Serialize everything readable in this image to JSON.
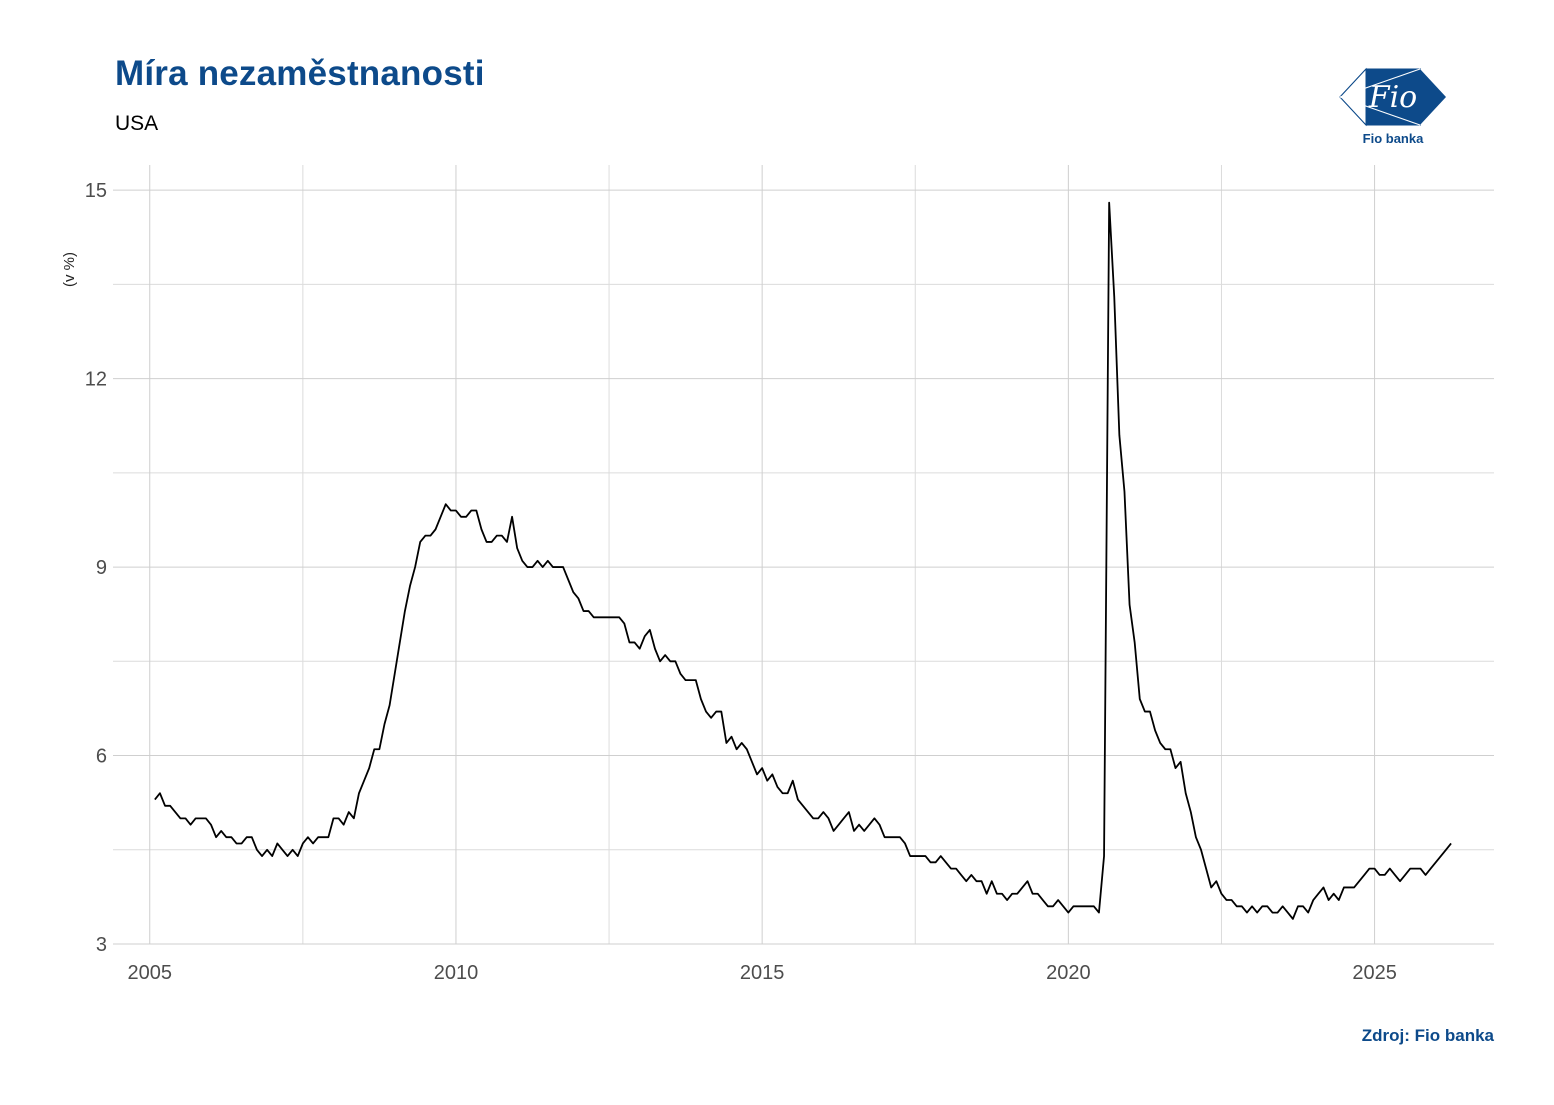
{
  "title": "Míra nezaměstnanosti",
  "subtitle": "USA",
  "source": "Zdroj: Fio banka",
  "logo": {
    "mark_text": "Fio",
    "caption": "Fio banka",
    "color": "#0d4a8a"
  },
  "chart_data": {
    "type": "line",
    "title": "Míra nezaměstnanosti",
    "subtitle": "USA",
    "ylabel": "(v %)",
    "xlabel": "",
    "ylim": [
      3,
      15.4
    ],
    "xlim": [
      2004.4,
      2026.95
    ],
    "y_ticks": [
      3,
      6,
      9,
      12,
      15
    ],
    "y_tick_labels": [
      "3",
      "6",
      "9",
      "12",
      "15"
    ],
    "x_ticks": [
      2005,
      2010,
      2015,
      2020,
      2025
    ],
    "x_tick_labels": [
      "2005",
      "2010",
      "2015",
      "2020",
      "2025"
    ],
    "grid": true,
    "line_color": "#000000",
    "series": [
      {
        "x_start": 2005.0833,
        "x_step": 0.08333,
        "values": [
          5.3,
          5.4,
          5.2,
          5.2,
          5.1,
          5.0,
          5.0,
          4.9,
          5.0,
          5.0,
          5.0,
          4.9,
          4.7,
          4.8,
          4.7,
          4.7,
          4.6,
          4.6,
          4.7,
          4.7,
          4.5,
          4.4,
          4.5,
          4.4,
          4.6,
          4.5,
          4.4,
          4.5,
          4.4,
          4.6,
          4.7,
          4.6,
          4.7,
          4.7,
          4.7,
          5.0,
          5.0,
          4.9,
          5.1,
          5.0,
          5.4,
          5.6,
          5.8,
          6.1,
          6.1,
          6.5,
          6.8,
          7.3,
          7.8,
          8.3,
          8.7,
          9.0,
          9.4,
          9.5,
          9.5,
          9.6,
          9.8,
          10.0,
          9.9,
          9.9,
          9.8,
          9.8,
          9.9,
          9.9,
          9.6,
          9.4,
          9.4,
          9.5,
          9.5,
          9.4,
          9.8,
          9.3,
          9.1,
          9.0,
          9.0,
          9.1,
          9.0,
          9.1,
          9.0,
          9.0,
          9.0,
          8.8,
          8.6,
          8.5,
          8.3,
          8.3,
          8.2,
          8.2,
          8.2,
          8.2,
          8.2,
          8.2,
          8.1,
          7.8,
          7.8,
          7.7,
          7.9,
          8.0,
          7.7,
          7.5,
          7.6,
          7.5,
          7.5,
          7.3,
          7.2,
          7.2,
          7.2,
          6.9,
          6.7,
          6.6,
          6.7,
          6.7,
          6.2,
          6.3,
          6.1,
          6.2,
          6.1,
          5.9,
          5.7,
          5.8,
          5.6,
          5.7,
          5.5,
          5.4,
          5.4,
          5.6,
          5.3,
          5.2,
          5.1,
          5.0,
          5.0,
          5.1,
          5.0,
          4.8,
          4.9,
          5.0,
          5.1,
          4.8,
          4.9,
          4.8,
          4.9,
          5.0,
          4.9,
          4.7,
          4.7,
          4.7,
          4.7,
          4.6,
          4.4,
          4.4,
          4.4,
          4.4,
          4.3,
          4.3,
          4.4,
          4.3,
          4.2,
          4.2,
          4.1,
          4.0,
          4.1,
          4.0,
          4.0,
          3.8,
          4.0,
          3.8,
          3.8,
          3.7,
          3.8,
          3.8,
          3.9,
          4.0,
          3.8,
          3.8,
          3.7,
          3.6,
          3.6,
          3.7,
          3.6,
          3.5,
          3.6,
          3.6,
          3.6,
          3.6,
          3.6,
          3.5,
          4.4,
          14.8,
          13.3,
          11.1,
          10.2,
          8.4,
          7.8,
          6.9,
          6.7,
          6.7,
          6.4,
          6.2,
          6.1,
          6.1,
          5.8,
          5.9,
          5.4,
          5.1,
          4.7,
          4.5,
          4.2,
          3.9,
          4.0,
          3.8,
          3.7,
          3.7,
          3.6,
          3.6,
          3.5,
          3.6,
          3.5,
          3.6,
          3.6,
          3.5,
          3.5,
          3.6,
          3.5,
          3.4,
          3.6,
          3.6,
          3.5,
          3.7,
          3.8,
          3.9,
          3.7,
          3.8,
          3.7,
          3.9,
          3.9,
          3.9,
          4.0,
          4.1,
          4.2,
          4.2,
          4.1,
          4.1,
          4.2,
          4.1,
          4.0,
          4.1,
          4.2,
          4.2,
          4.2,
          4.1,
          4.2,
          4.3,
          4.4,
          4.5,
          4.6
        ]
      }
    ]
  }
}
